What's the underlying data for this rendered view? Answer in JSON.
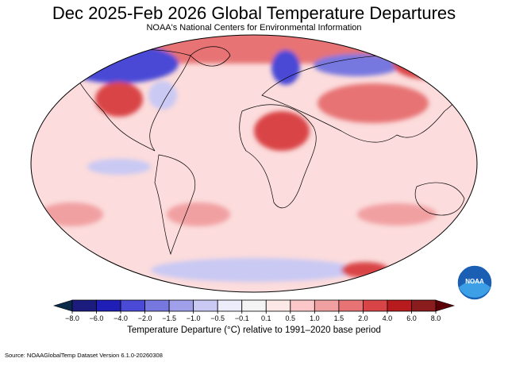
{
  "title": "Dec 2025-Feb 2026 Global Temperature Departures",
  "subtitle": "NOAA's National Centers for Environmental Information",
  "colorbar": {
    "ticks": [
      "−8.0",
      "−6.0",
      "−4.0",
      "−2.0",
      "−1.5",
      "−1.0",
      "−0.5",
      "−0.1",
      "0.1",
      "0.5",
      "1.0",
      "1.5",
      "2.0",
      "4.0",
      "6.0",
      "8.0"
    ],
    "colors": [
      "#1c1c7e",
      "#1f1fb8",
      "#4a4ad6",
      "#7777e0",
      "#a0a0ea",
      "#c9c9f4",
      "#ececfb",
      "#f4f4f4",
      "#fde8e8",
      "#fbc7c9",
      "#f1a0a2",
      "#e77375",
      "#d94446",
      "#b71b1e",
      "#8a1c1e"
    ],
    "low_color": "#0a2a4a",
    "high_color": "#5c0008",
    "label": "Temperature Departure (°C) relative to 1991–2020 base period"
  },
  "logo": "NOAA",
  "source": "Source: NOAAGlobalTemp Dataset Version 6.1.0-20260308"
}
